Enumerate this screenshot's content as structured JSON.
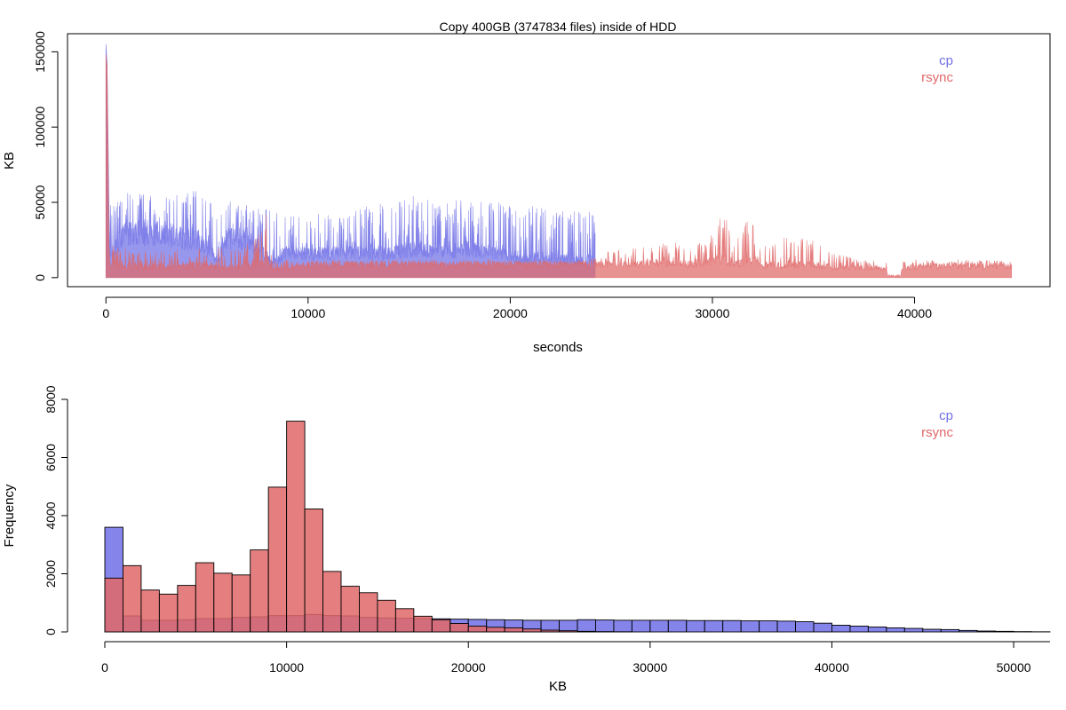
{
  "colors": {
    "cp": "#6f6fe6",
    "rsync": "#e06868",
    "cp_fill": "#6f6fe6",
    "rsync_fill": "#e06868"
  },
  "chart_data": [
    {
      "type": "line",
      "title": "Copy 400GB (3747834 files) inside of HDD",
      "xlabel": "seconds",
      "ylabel": "KB",
      "xlim": [
        -1900,
        46700
      ],
      "ylim": [
        -6000,
        162000
      ],
      "xticks": [
        0,
        10000,
        20000,
        30000,
        40000
      ],
      "xtick_labels": [
        "0",
        "10000",
        "20000",
        "30000",
        "40000"
      ],
      "yticks": [
        0,
        50000,
        100000,
        150000
      ],
      "ytick_labels": [
        "0",
        "50000",
        "100000",
        "150000"
      ],
      "legend_position": "top-right",
      "grid": false,
      "series": [
        {
          "name": "cp",
          "color": "#6f6fe6",
          "x_end": 24200,
          "spike": [
            [
              0,
              155000
            ],
            [
              60,
              142000
            ],
            [
              150,
              50000
            ]
          ],
          "envelope": [
            [
              200,
              55000,
              20000
            ],
            [
              1000,
              58000,
              35000
            ],
            [
              2000,
              56000,
              34000
            ],
            [
              3000,
              54000,
              34000
            ],
            [
              4000,
              56000,
              30000
            ],
            [
              4600,
              60000,
              28000
            ],
            [
              5500,
              48000,
              15000
            ],
            [
              6000,
              52000,
              30000
            ],
            [
              7000,
              50000,
              30000
            ],
            [
              8000,
              47000,
              18000
            ],
            [
              8200,
              44000,
              10000
            ],
            [
              9000,
              42000,
              20000
            ],
            [
              10000,
              44000,
              18000
            ],
            [
              12000,
              46000,
              20000
            ],
            [
              14000,
              50000,
              18000
            ],
            [
              15000,
              56000,
              22000
            ],
            [
              16000,
              52000,
              22000
            ],
            [
              17000,
              54000,
              20000
            ],
            [
              18000,
              50000,
              22000
            ],
            [
              19000,
              54000,
              20000
            ],
            [
              20000,
              48000,
              18000
            ],
            [
              20600,
              42000,
              14000
            ],
            [
              21000,
              48000,
              16000
            ],
            [
              22000,
              45000,
              16000
            ],
            [
              23000,
              44000,
              14000
            ],
            [
              24000,
              44000,
              14000
            ],
            [
              24200,
              42000,
              14000
            ]
          ]
        },
        {
          "name": "rsync",
          "color": "#e06868",
          "x_end": 44800,
          "spike": [
            [
              0,
              148000
            ],
            [
              60,
              140000
            ],
            [
              150,
              22000
            ]
          ],
          "envelope": [
            [
              200,
              22000,
              10000
            ],
            [
              1500,
              18000,
              8000
            ],
            [
              3000,
              18000,
              8000
            ],
            [
              4500,
              20000,
              10000
            ],
            [
              5600,
              20000,
              8000
            ],
            [
              6500,
              18000,
              8000
            ],
            [
              7500,
              30000,
              10000
            ],
            [
              8000,
              48000,
              15000
            ],
            [
              8200,
              12000,
              6000
            ],
            [
              10000,
              12000,
              10000
            ],
            [
              12000,
              12000,
              10000
            ],
            [
              14000,
              12000,
              10000
            ],
            [
              16000,
              12000,
              10000
            ],
            [
              18000,
              12000,
              10000
            ],
            [
              20000,
              12000,
              10000
            ],
            [
              22000,
              12000,
              10000
            ],
            [
              24000,
              12000,
              10000
            ],
            [
              24500,
              18000,
              10000
            ],
            [
              26000,
              22000,
              10000
            ],
            [
              28000,
              24000,
              12000
            ],
            [
              29000,
              22000,
              10000
            ],
            [
              30000,
              30000,
              14000
            ],
            [
              30500,
              48000,
              14000
            ],
            [
              31000,
              24000,
              10000
            ],
            [
              32000,
              44000,
              14000
            ],
            [
              32500,
              22000,
              10000
            ],
            [
              33000,
              22000,
              10000
            ],
            [
              33500,
              28000,
              10000
            ],
            [
              34500,
              26000,
              10000
            ],
            [
              35000,
              28000,
              10000
            ],
            [
              36000,
              18000,
              8000
            ],
            [
              37000,
              14000,
              8000
            ],
            [
              38000,
              12000,
              8000
            ],
            [
              38600,
              12000,
              6000
            ],
            [
              38700,
              2000,
              0
            ],
            [
              39300,
              2000,
              0
            ],
            [
              39400,
              12000,
              8000
            ],
            [
              41000,
              12000,
              9000
            ],
            [
              43000,
              12000,
              9000
            ],
            [
              44800,
              12000,
              9000
            ]
          ]
        }
      ]
    },
    {
      "type": "bar",
      "title": "",
      "xlabel": "KB",
      "ylabel": "Frequency",
      "xlim": [
        0,
        52000
      ],
      "ylim": [
        0,
        8000
      ],
      "bin_width": 1000,
      "bin_start": 0,
      "xticks": [
        0,
        10000,
        20000,
        30000,
        40000,
        50000
      ],
      "xtick_labels": [
        "0",
        "10000",
        "20000",
        "30000",
        "40000",
        "50000"
      ],
      "yticks": [
        0,
        2000,
        4000,
        6000,
        8000
      ],
      "ytick_labels": [
        "0",
        "2000",
        "4000",
        "6000",
        "8000"
      ],
      "legend_position": "top-right",
      "grid": false,
      "series": [
        {
          "name": "cp",
          "color": "#6f6fe6",
          "values": [
            3600,
            550,
            400,
            400,
            420,
            460,
            460,
            500,
            520,
            560,
            560,
            600,
            560,
            550,
            500,
            480,
            470,
            460,
            450,
            440,
            430,
            420,
            410,
            400,
            400,
            400,
            420,
            410,
            400,
            400,
            400,
            400,
            390,
            390,
            390,
            380,
            380,
            370,
            350,
            300,
            230,
            200,
            170,
            140,
            120,
            90,
            80,
            50,
            30,
            20,
            10,
            5
          ]
        },
        {
          "name": "rsync",
          "color": "#e06868",
          "values": [
            1850,
            2280,
            1440,
            1300,
            1600,
            2380,
            2020,
            1960,
            2820,
            4980,
            7250,
            4230,
            2080,
            1570,
            1350,
            1090,
            800,
            540,
            420,
            290,
            200,
            160,
            140,
            100,
            60,
            40,
            20,
            10,
            5,
            0,
            0,
            0,
            0,
            0,
            0,
            0,
            0,
            0,
            0,
            0,
            0,
            0,
            0,
            0,
            0,
            0,
            0,
            0,
            0,
            0,
            0,
            0
          ]
        }
      ]
    }
  ]
}
